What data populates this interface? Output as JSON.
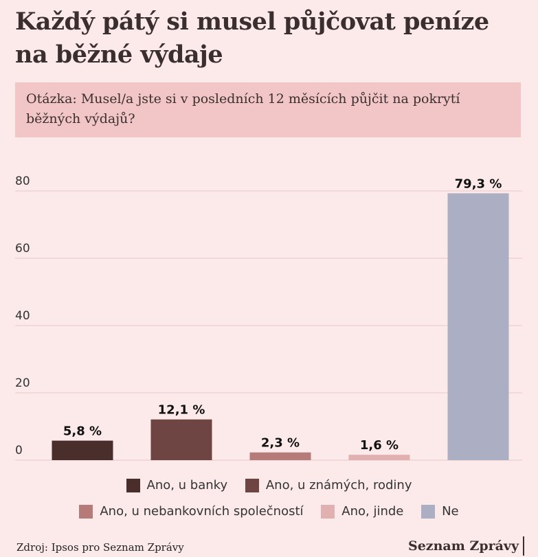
{
  "title": "Každý pátý si musel půjčovat peníze na běžné výdaje",
  "question": "Otázka: Musel/a jste si v posledních 12 měsících půjčit na pokrytí běžných výdajů?",
  "chart_data": {
    "type": "bar",
    "categories": [
      "Ano, u banky",
      "Ano, u známých, rodiny",
      "Ano, u nebankovních společností",
      "Ano, jinde",
      "Ne"
    ],
    "values": [
      5.8,
      12.1,
      2.3,
      1.6,
      79.3
    ],
    "value_labels": [
      "5,8 %",
      "12,1 %",
      "2,3 %",
      "1,6 %",
      "79,3 %"
    ],
    "colors": [
      "#4a2e2c",
      "#6e4543",
      "#b57b79",
      "#e0b1b0",
      "#acaec3"
    ],
    "ylim": [
      0,
      80
    ],
    "yticks": [
      0,
      20,
      40,
      60,
      80
    ],
    "ytick_labels": [
      "0",
      "20",
      "40",
      "60",
      "80"
    ],
    "grid": true,
    "legend_position": "bottom"
  },
  "legend": {
    "row1": [
      {
        "label": "Ano, u banky",
        "color": "#4a2e2c"
      },
      {
        "label": "Ano, u známých, rodiny",
        "color": "#6e4543"
      }
    ],
    "row2": [
      {
        "label": "Ano, u nebankovních společností",
        "color": "#b57b79"
      },
      {
        "label": "Ano, jinde",
        "color": "#e0b1b0"
      },
      {
        "label": "Ne",
        "color": "#acaec3"
      }
    ]
  },
  "footer": {
    "source": "Zdroj: Ipsos pro Seznam Zprávy",
    "brand": "Seznam Zprávy"
  }
}
